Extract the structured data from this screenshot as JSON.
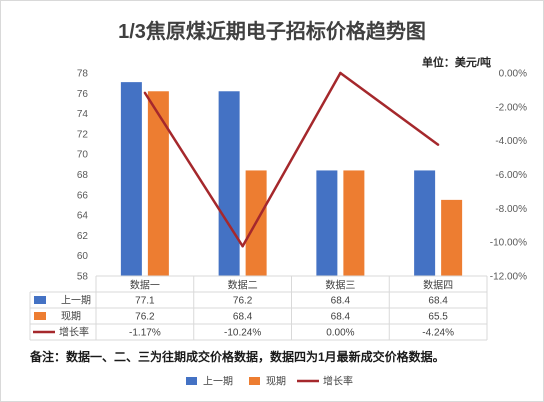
{
  "chart_data": {
    "type": "bar",
    "title": "1/3焦原煤近期电子招标价格趋势图",
    "unit": "单位：美元/吨",
    "categories": [
      "数据一",
      "数据二",
      "数据三",
      "数据四"
    ],
    "series": [
      {
        "name": "上一期",
        "type": "bar",
        "axis": "left",
        "color": "#4472C4",
        "values": [
          77.1,
          76.2,
          68.4,
          68.4
        ],
        "labels": [
          "77.1",
          "76.2",
          "68.4",
          "68.4"
        ]
      },
      {
        "name": "现期",
        "type": "bar",
        "axis": "left",
        "color": "#ED7D31",
        "values": [
          76.2,
          68.4,
          68.4,
          65.5
        ],
        "labels": [
          "76.2",
          "68.4",
          "68.4",
          "65.5"
        ]
      },
      {
        "name": "增长率",
        "type": "line",
        "axis": "right",
        "color": "#A5282C",
        "values": [
          -1.17,
          -10.24,
          0,
          -4.24
        ],
        "labels": [
          "-1.17%",
          "-10.24%",
          "0.00%",
          "-4.24%"
        ]
      }
    ],
    "y_left": {
      "min": 58,
      "max": 78,
      "ticks": [
        "58",
        "60",
        "62",
        "64",
        "66",
        "68",
        "70",
        "72",
        "74",
        "76",
        "78"
      ]
    },
    "y_right": {
      "min": -12,
      "max": 0,
      "ticks": [
        "-12.00%",
        "-10.00%",
        "-8.00%",
        "-6.00%",
        "-4.00%",
        "-2.00%",
        "0.00%"
      ]
    },
    "grid": false,
    "data_table": true,
    "legend_position": "bottom",
    "note": "备注：数据一、二、三为往期成交价格数据，数据四为1月最新成交价格数据。"
  }
}
